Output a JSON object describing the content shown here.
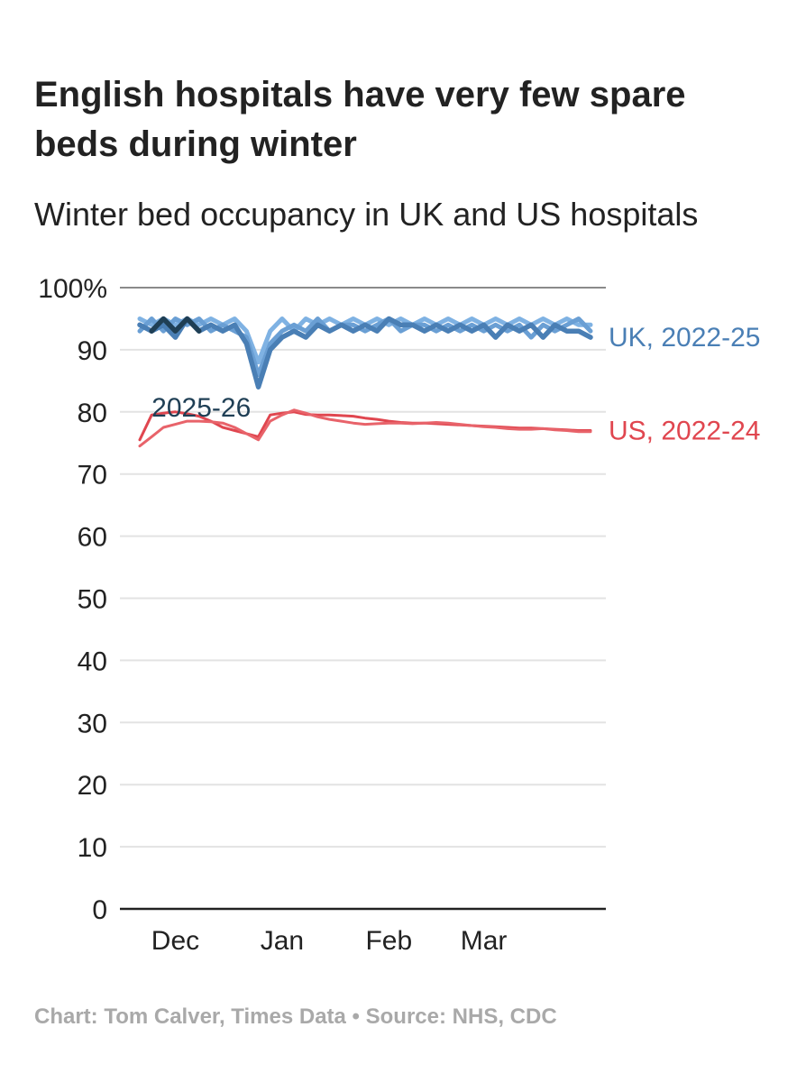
{
  "chart_data": {
    "type": "line",
    "title": [
      "English hospitals have very few spare",
      "beds during winter"
    ],
    "subtitle": "Winter bed occupancy in UK and US hospitals",
    "source": "Chart: Tom Calver, Times Data • Source: NHS, CDC",
    "categories": [
      null,
      null,
      null,
      "Dec",
      null,
      null,
      null,
      null,
      null,
      null,
      null,
      null,
      "Jan",
      null,
      null,
      null,
      null,
      null,
      null,
      null,
      null,
      "Feb",
      null,
      null,
      null,
      null,
      null,
      null,
      null,
      "Mar",
      null,
      null,
      null,
      null,
      null,
      null,
      null,
      null,
      null
    ],
    "ylim": [
      0,
      100
    ],
    "yticks": [
      0,
      10,
      20,
      30,
      40,
      50,
      60,
      70,
      80,
      90,
      {
        "value": 100,
        "label": "100%"
      }
    ],
    "grid": true,
    "series": [
      {
        "color": "#7fb2e3",
        "values": [
          95,
          94,
          95,
          94,
          95,
          94,
          95,
          94,
          95,
          93,
          88,
          93,
          95,
          93,
          95,
          94,
          95,
          94,
          95,
          94,
          95,
          94,
          95,
          94,
          95,
          94,
          95,
          94,
          95,
          94,
          95,
          94,
          95,
          94,
          95,
          94,
          95,
          94,
          94
        ]
      },
      {
        "color": "#6a9fd4",
        "values": [
          93,
          95,
          93,
          95,
          94,
          95,
          93,
          94,
          93,
          92,
          86,
          91,
          93,
          94,
          93,
          95,
          93,
          94,
          94,
          93,
          94,
          95,
          93,
          94,
          94,
          93,
          94,
          93,
          94,
          93,
          94,
          93,
          94,
          92,
          94,
          93,
          94,
          95,
          93
        ]
      },
      {
        "name": "UK, 2022-25",
        "color": "#4a7fb5",
        "values": [
          94,
          93,
          94,
          92,
          95,
          93,
          94,
          93,
          94,
          91,
          84,
          90,
          92,
          93,
          92,
          94,
          93,
          94,
          93,
          94,
          93,
          95,
          94,
          94,
          93,
          94,
          93,
          94,
          93,
          94,
          92,
          94,
          93,
          94,
          92,
          94,
          93,
          93,
          92
        ]
      },
      {
        "name": "2025-26",
        "color": "#1f3f55",
        "values": [
          null,
          93,
          95,
          93,
          95,
          93,
          null,
          null,
          null,
          null,
          null,
          null,
          null,
          null,
          null,
          null,
          null,
          null,
          null,
          null,
          null,
          null,
          null,
          null,
          null,
          null,
          null,
          null,
          null,
          null,
          null,
          null,
          null,
          null,
          null,
          null,
          null,
          null,
          null
        ]
      },
      {
        "name": "US, 2022-24",
        "color": "#e0464f",
        "values": [
          75.5,
          79.5,
          79.8,
          80,
          79.7,
          79.3,
          78.5,
          77.5,
          77,
          76.5,
          76,
          79.5,
          79.8,
          80,
          79.6,
          79.5,
          79.5,
          79.4,
          79.3,
          79,
          78.8,
          78.5,
          78.3,
          78.2,
          78.2,
          78.1,
          78,
          77.9,
          77.8,
          77.7,
          77.6,
          77.5,
          77.4,
          77.4,
          77.3,
          77.2,
          77.1,
          77,
          77
        ]
      },
      {
        "color": "#e8636a",
        "values": [
          74.5,
          76,
          77.5,
          78,
          78.5,
          78.5,
          78.4,
          78.2,
          77.5,
          76.5,
          75.5,
          78.5,
          79.5,
          80.3,
          79.8,
          79.2,
          78.8,
          78.5,
          78.2,
          78,
          78.1,
          78.2,
          78.2,
          78.1,
          78.2,
          78.3,
          78.2,
          78,
          77.8,
          77.6,
          77.5,
          77.3,
          77.2,
          77.2,
          77.3,
          77.1,
          77,
          76.8,
          76.8
        ]
      }
    ]
  }
}
